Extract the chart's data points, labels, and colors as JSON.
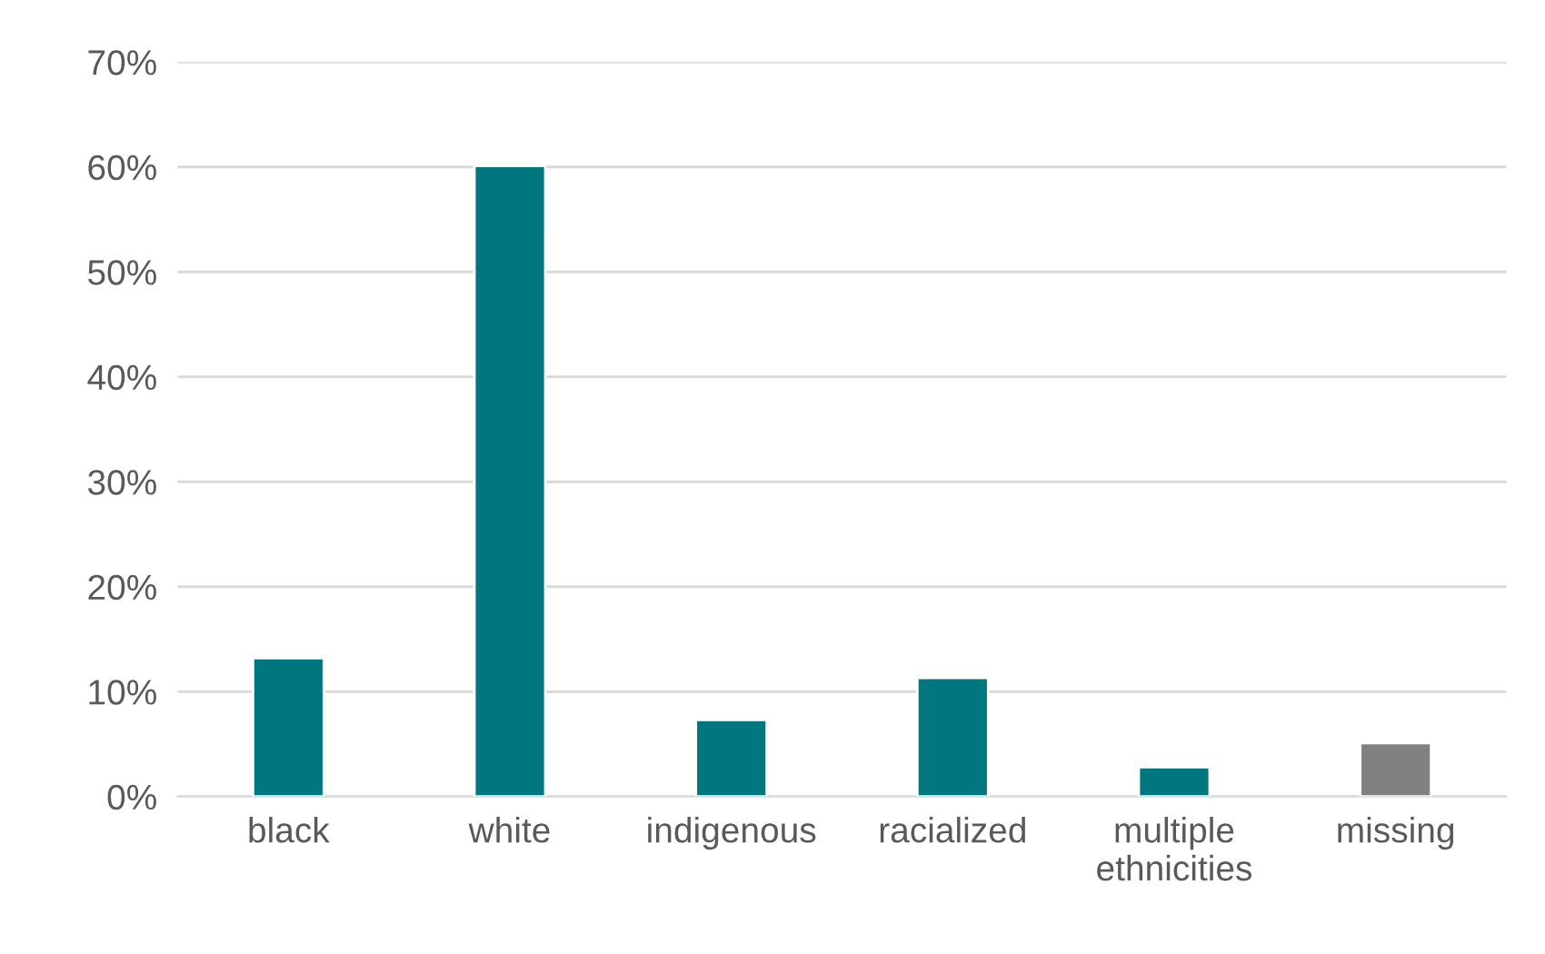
{
  "chart_data": {
    "type": "bar",
    "categories": [
      "black",
      "white",
      "indigenous",
      "racialized",
      "multiple\nethnicities",
      "missing"
    ],
    "values": [
      13.2,
      60.1,
      7.3,
      11.3,
      2.8,
      5.1
    ],
    "colors": [
      "#00767e",
      "#00767e",
      "#00767e",
      "#00767e",
      "#00767e",
      "#808080"
    ],
    "ylim": [
      0,
      70
    ],
    "yticks": [
      {
        "value": 0,
        "label": "0%"
      },
      {
        "value": 10,
        "label": "10%"
      },
      {
        "value": 20,
        "label": "20%"
      },
      {
        "value": 30,
        "label": "30%"
      },
      {
        "value": 40,
        "label": "40%"
      },
      {
        "value": 50,
        "label": "50%"
      },
      {
        "value": 60,
        "label": "60%"
      },
      {
        "value": 70,
        "label": "70%"
      }
    ],
    "grid": "y",
    "legend": false
  }
}
